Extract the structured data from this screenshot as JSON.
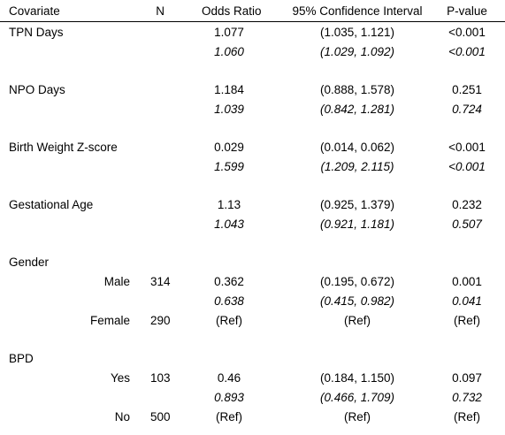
{
  "header": {
    "covariate": "Covariate",
    "n": "N",
    "odds_ratio": "Odds Ratio",
    "ci": "95% Confidence Interval",
    "p_value": "P-value"
  },
  "rows": [
    {
      "covariate": "TPN Days",
      "subgroup": "",
      "n": "",
      "or": "1.077",
      "ci": "(1.035, 1.121)",
      "p": "<0.001"
    },
    {
      "covariate": "",
      "subgroup": "",
      "n": "",
      "or": "1.060",
      "ci": "(1.029, 1.092)",
      "p": "<0.001"
    },
    {
      "covariate": "NPO Days",
      "subgroup": "",
      "n": "",
      "or": "1.184",
      "ci": "(0.888, 1.578)",
      "p": "0.251"
    },
    {
      "covariate": "",
      "subgroup": "",
      "n": "",
      "or": "1.039",
      "ci": "(0.842, 1.281)",
      "p": "0.724"
    },
    {
      "covariate": "Birth Weight Z-score",
      "subgroup": "",
      "n": "",
      "or": "0.029",
      "ci": "(0.014, 0.062)",
      "p": "<0.001"
    },
    {
      "covariate": "",
      "subgroup": "",
      "n": "",
      "or": "1.599",
      "ci": "(1.209, 2.115)",
      "p": "<0.001"
    },
    {
      "covariate": "Gestational Age",
      "subgroup": "",
      "n": "",
      "or": "1.13",
      "ci": "(0.925, 1.379)",
      "p": "0.232"
    },
    {
      "covariate": "",
      "subgroup": "",
      "n": "",
      "or": "1.043",
      "ci": "(0.921, 1.181)",
      "p": "0.507"
    },
    {
      "covariate": "Gender",
      "subgroup": "",
      "n": "",
      "or": "",
      "ci": "",
      "p": ""
    },
    {
      "covariate": "",
      "subgroup": "Male",
      "n": "314",
      "or": "0.362",
      "ci": "(0.195, 0.672)",
      "p": "0.001"
    },
    {
      "covariate": "",
      "subgroup": "",
      "n": "",
      "or": "0.638",
      "ci": "(0.415, 0.982)",
      "p": "0.041"
    },
    {
      "covariate": "",
      "subgroup": "Female",
      "n": "290",
      "or": "(Ref)",
      "ci": "(Ref)",
      "p": "(Ref)"
    },
    {
      "covariate": "BPD",
      "subgroup": "",
      "n": "",
      "or": "",
      "ci": "",
      "p": ""
    },
    {
      "covariate": "",
      "subgroup": "Yes",
      "n": "103",
      "or": "0.46",
      "ci": "(0.184, 1.150)",
      "p": "0.097"
    },
    {
      "covariate": "",
      "subgroup": "",
      "n": "",
      "or": "0.893",
      "ci": "(0.466, 1.709)",
      "p": "0.732"
    },
    {
      "covariate": "",
      "subgroup": "No",
      "n": "500",
      "or": "(Ref)",
      "ci": "(Ref)",
      "p": "(Ref)"
    }
  ]
}
